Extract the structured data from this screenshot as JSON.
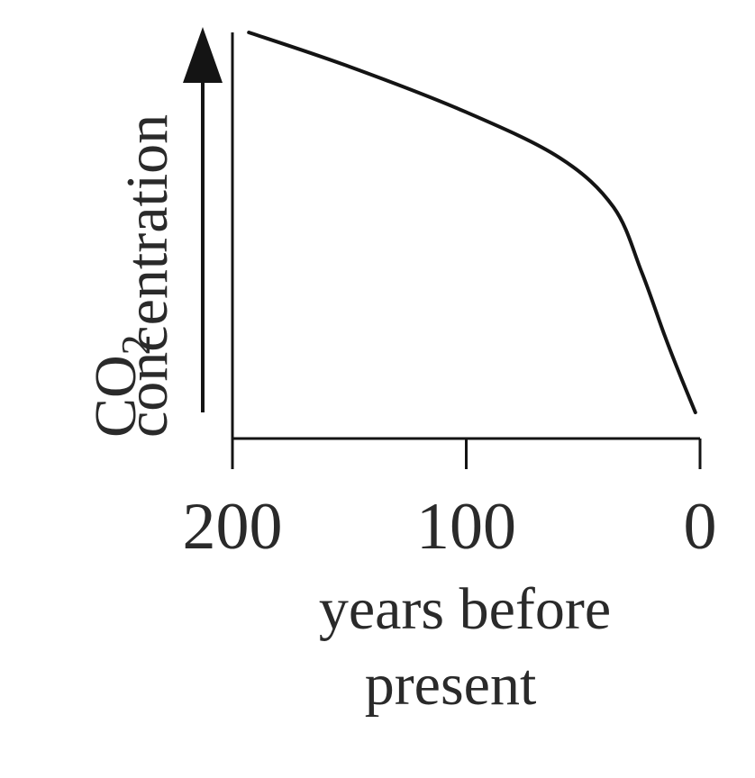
{
  "chart_data": {
    "type": "line",
    "title": "",
    "ylabel": {
      "line1_main": "CO",
      "line1_sub": "2",
      "line2": "concentration"
    },
    "xlabel": {
      "line1": "years before",
      "line2": "present"
    },
    "x_reversed": true,
    "xlim": [
      200,
      0
    ],
    "ylim": [
      0,
      100
    ],
    "x_ticks": [
      200,
      100,
      0
    ],
    "x_tick_labels": [
      "200",
      "100",
      "0"
    ],
    "y_ticks_shown": false,
    "grid": false,
    "series": [
      {
        "x": [
          193,
          150,
          100,
          60,
          37,
          25,
          15,
          8,
          2
        ],
        "y": [
          100,
          91,
          79,
          67,
          54,
          37,
          20,
          9,
          0
        ],
        "color": "#141414"
      }
    ],
    "y_arrow_color": "#141414"
  }
}
